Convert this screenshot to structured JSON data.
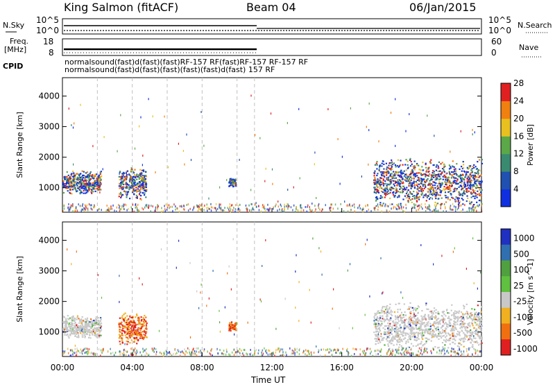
{
  "header": {
    "station": "King Salmon (fitACF)",
    "beam": "Beam 04",
    "date": "06/Jan/2015"
  },
  "noise_panel": {
    "left_label": "N.Sky",
    "right_label": "N.Search",
    "left_ticks": [
      "10^5",
      "10^0"
    ],
    "right_ticks": [
      "10^5",
      "10^0"
    ]
  },
  "freq_panel": {
    "left_label_1": "Freq.",
    "left_label_2": "[MHz]",
    "right_label": "Nave",
    "left_ticks": [
      "18",
      "8"
    ],
    "right_ticks": [
      "60",
      "0"
    ]
  },
  "cpid": {
    "label": "CPID",
    "row1": "normalsound(fast)d(fast)(fast)RF-157 RF(fast)RF-157 RF-157 RF",
    "row2": "normalsound(fast)d(fast)(fast)(fast)(fast)d(fast) 157 RF"
  },
  "chart_data": [
    {
      "type": "heatmap",
      "name": "power",
      "ylabel": "Slant Range [km]",
      "xlabel": "",
      "x_ticks": [
        "00:00",
        "04:00",
        "08:00",
        "12:00",
        "16:00",
        "20:00",
        "00:00"
      ],
      "y_ticks": [
        1000,
        2000,
        3000,
        4000
      ],
      "ylim": [
        200,
        4600
      ],
      "xlim_hours": [
        0,
        24
      ],
      "colorbar": {
        "label": "Power [dB]",
        "ticks": [
          "4",
          "8",
          "12",
          "16",
          "20",
          "24",
          "28"
        ],
        "colors": [
          "#1030e0",
          "#2050b0",
          "#3a8a70",
          "#5aa848",
          "#e8c020",
          "#f08010",
          "#e02020"
        ]
      },
      "echo_regions": [
        {
          "t_start": 0.0,
          "t_end": 2.2,
          "range_center": 1200,
          "range_spread": 250,
          "intensity": 0.5
        },
        {
          "t_start": 3.2,
          "t_end": 4.8,
          "range_center": 1150,
          "range_spread": 350,
          "intensity": 0.4
        },
        {
          "t_start": 9.5,
          "t_end": 9.9,
          "range_center": 1200,
          "range_spread": 100,
          "intensity": 0.3
        },
        {
          "t_start": 17.8,
          "t_end": 24.0,
          "range_center": 1200,
          "range_spread": 500,
          "intensity": 0.55
        }
      ]
    },
    {
      "type": "heatmap",
      "name": "velocity",
      "ylabel": "Slant Range [km]",
      "xlabel": "Time UT",
      "x_ticks": [
        "00:00",
        "04:00",
        "08:00",
        "12:00",
        "16:00",
        "20:00",
        "00:00"
      ],
      "y_ticks": [
        1000,
        2000,
        3000,
        4000
      ],
      "ylim": [
        200,
        4600
      ],
      "xlim_hours": [
        0,
        24
      ],
      "colorbar": {
        "label": "Velocity [m s^-1]",
        "ticks": [
          "1000",
          "500",
          "100",
          "25",
          "-25",
          "-100",
          "-500",
          "-1000"
        ],
        "colors": [
          "#2030c0",
          "#3070b0",
          "#50a040",
          "#60c040",
          "#c8c8c8",
          "#f0b020",
          "#f07010",
          "#e02020"
        ]
      },
      "echo_regions": [
        {
          "t_start": 0.0,
          "t_end": 2.2,
          "range_center": 1200,
          "range_spread": 250,
          "velocity_class": "ground"
        },
        {
          "t_start": 3.2,
          "t_end": 4.8,
          "range_center": 1150,
          "range_spread": 350,
          "velocity_class": "negative"
        },
        {
          "t_start": 9.5,
          "t_end": 9.9,
          "range_center": 1200,
          "range_spread": 100,
          "velocity_class": "negative"
        },
        {
          "t_start": 17.8,
          "t_end": 24.0,
          "range_center": 1200,
          "range_spread": 500,
          "velocity_class": "ground"
        }
      ]
    }
  ]
}
